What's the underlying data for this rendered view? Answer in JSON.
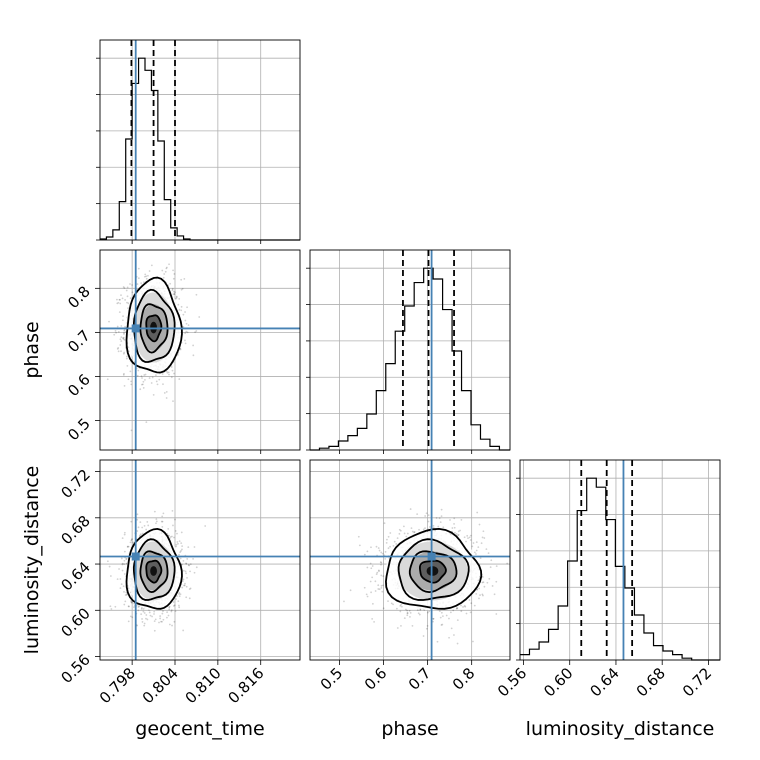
{
  "chart_data": {
    "type": "corner",
    "parameters": [
      "geocent_time",
      "phase",
      "luminosity_distance"
    ],
    "axis_labels": {
      "geocent_time": "geocent_time",
      "phase": "phase",
      "luminosity_distance": "luminosity_distance"
    },
    "ranges": {
      "geocent_time": [
        0.7935,
        0.8215
      ],
      "phase": [
        0.433,
        0.887
      ],
      "luminosity_distance": [
        0.557,
        0.73
      ]
    },
    "ticks": {
      "geocent_time": [
        "0.798",
        "0.804",
        "0.810",
        "0.816"
      ],
      "phase": [
        "0.5",
        "0.6",
        "0.7",
        "0.8"
      ],
      "luminosity_distance": [
        "0.56",
        "0.60",
        "0.64",
        "0.68",
        "0.72"
      ]
    },
    "truths": {
      "geocent_time": 0.7985,
      "phase": 0.709,
      "luminosity_distance": 0.6465
    },
    "quantiles": {
      "geocent_time": [
        0.7979,
        0.801,
        0.804
      ],
      "phase": [
        0.644,
        0.702,
        0.76
      ],
      "luminosity_distance": [
        0.61,
        0.632,
        0.654
      ]
    },
    "posterior": {
      "geocent_time": {
        "mean": 0.801,
        "sd": 0.0019
      },
      "phase": {
        "mean": 0.711,
        "sd": 0.053
      },
      "luminosity_distance": {
        "mean": 0.634,
        "sd": 0.017
      }
    },
    "histograms": {
      "geocent_time": {
        "bin_edges": [
          0.7935,
          0.7944,
          0.7953,
          0.7962,
          0.7971,
          0.798,
          0.7989,
          0.7998,
          0.8007,
          0.8016,
          0.8025,
          0.8034,
          0.8043,
          0.8052,
          0.8061,
          0.807,
          0.8079,
          0.8088,
          0.8097,
          0.8106,
          0.8115,
          0.8124,
          0.8133,
          0.8142,
          0.8151,
          0.816,
          0.8169,
          0.8178,
          0.8187,
          0.8196,
          0.8205,
          0.8215
        ],
        "counts": [
          1,
          3,
          10,
          38,
          100,
          155,
          180,
          168,
          148,
          98,
          40,
          12,
          4,
          1,
          0,
          0,
          0,
          0,
          0,
          0,
          0,
          0,
          0,
          0,
          0,
          0,
          0,
          0,
          0,
          0,
          0
        ]
      },
      "phase": {
        "bin_edges": [
          0.433,
          0.4545,
          0.476,
          0.4975,
          0.519,
          0.5405,
          0.562,
          0.5835,
          0.605,
          0.6265,
          0.648,
          0.6695,
          0.691,
          0.7125,
          0.734,
          0.7555,
          0.777,
          0.7985,
          0.82,
          0.8415,
          0.863,
          0.887
        ],
        "counts": [
          0,
          1,
          2,
          5,
          8,
          12,
          20,
          33,
          48,
          66,
          80,
          93,
          101,
          95,
          78,
          55,
          33,
          14,
          6,
          2,
          0
        ]
      },
      "luminosity_distance": {
        "bin_edges": [
          0.557,
          0.5652,
          0.5735,
          0.5817,
          0.59,
          0.5982,
          0.6065,
          0.6147,
          0.623,
          0.6312,
          0.6395,
          0.6477,
          0.656,
          0.6642,
          0.6725,
          0.6807,
          0.689,
          0.6972,
          0.7055,
          0.7137,
          0.722,
          0.73
        ],
        "counts": [
          3,
          6,
          10,
          17,
          30,
          55,
          83,
          101,
          96,
          78,
          52,
          40,
          25,
          15,
          8,
          5,
          3,
          1,
          0,
          0,
          0
        ]
      }
    },
    "grid": true,
    "contours": true,
    "scatter_points": true
  }
}
